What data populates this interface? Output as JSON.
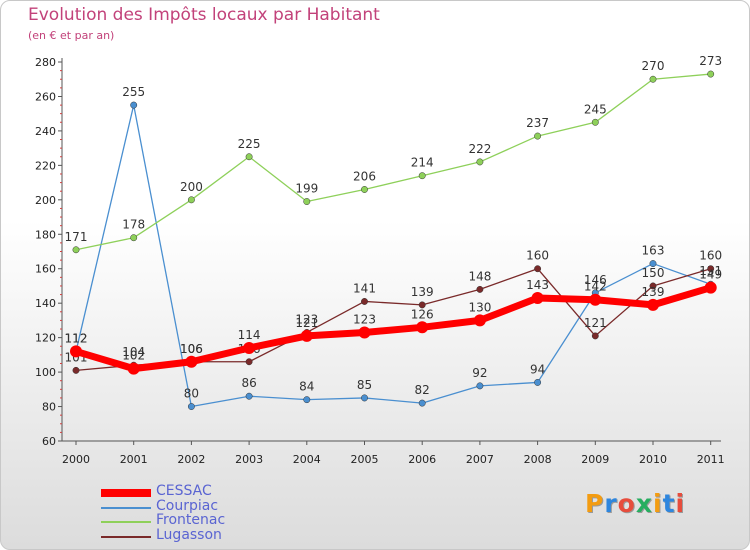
{
  "title": "Evolution des Impôts locaux par Habitant",
  "subtitle": "(en € et par an)",
  "logo": {
    "text": "Proxiti",
    "letter_colors": [
      "#f39c12",
      "#2e86de",
      "#e74c3c",
      "#27ae60",
      "#f39c12",
      "#2e86de",
      "#e74c3c"
    ]
  },
  "chart_data": {
    "type": "line",
    "x": [
      "2000",
      "2001",
      "2002",
      "2003",
      "2004",
      "2005",
      "2006",
      "2007",
      "2008",
      "2009",
      "2010",
      "2011"
    ],
    "ylim": [
      60,
      280
    ],
    "yticks": [
      60,
      80,
      100,
      120,
      140,
      160,
      180,
      200,
      220,
      240,
      260,
      280
    ],
    "grid": false,
    "legend_position": "bottom-left",
    "series": [
      {
        "name": "CESSAC",
        "color": "#ff0000",
        "values": [
          112,
          102,
          106,
          114,
          121,
          123,
          126,
          130,
          143,
          142,
          139,
          149
        ]
      },
      {
        "name": "Courpiac",
        "color": "#4a8fd0",
        "values": [
          112,
          255,
          80,
          86,
          84,
          85,
          82,
          92,
          94,
          146,
          163,
          151
        ]
      },
      {
        "name": "Frontenac",
        "color": "#8ed05a",
        "values": [
          171,
          178,
          200,
          225,
          199,
          206,
          214,
          222,
          237,
          245,
          270,
          273
        ]
      },
      {
        "name": "Lugasson",
        "color": "#7a2a2a",
        "values": [
          101,
          104,
          106,
          106,
          123,
          141,
          139,
          148,
          160,
          121,
          150,
          160
        ]
      }
    ]
  }
}
